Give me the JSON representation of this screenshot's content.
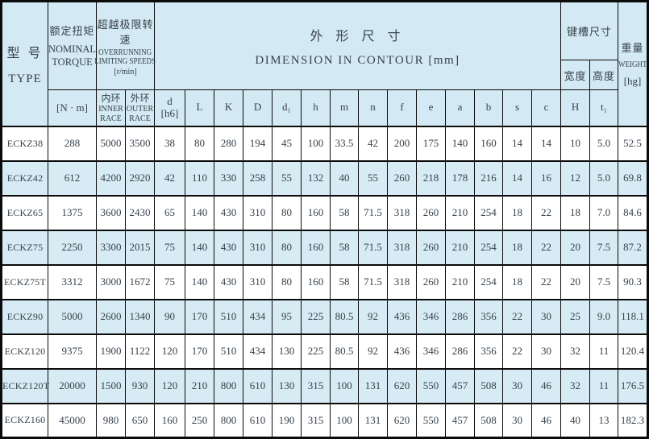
{
  "colors": {
    "header_bg": "#d3e9f3",
    "row_bg": "#ffffff",
    "row_alt_bg": "#d7ebf4",
    "border": "#0b0b0b",
    "text": "#37424c"
  },
  "header": {
    "type_zh": "型 号",
    "type_en": "TYPE",
    "torque_zh": "额定扭矩",
    "torque_en": "NOMINAL\nTORQUE",
    "torque_unit": "[N · m]",
    "overrun_zh": "超越极限转速",
    "overrun_en": "OVERRUNNING\nLIMITING SPEEDS",
    "overrun_unit": "[r/min]",
    "inner_zh": "内环",
    "inner_en": "INNER\nRACE",
    "outer_zh": "外环",
    "outer_en": "OUTER\nRACE",
    "dim_zh": "外 形  尺 寸",
    "dim_en": "DIMENSION  IN CONTOUR  [mm]",
    "keyway_zh": "键槽尺寸",
    "keyway_width_zh": "宽度",
    "keyway_height_zh": "高度",
    "weight_zh": "重量",
    "weight_en": "WEIGHT",
    "weight_unit": "[hg]",
    "dim_cols": [
      "d\n[h6]",
      "L",
      "K",
      "D",
      "d₁",
      "h",
      "m",
      "n",
      "f",
      "e",
      "a",
      "b",
      "s",
      "c"
    ],
    "keyway_cols": [
      "H",
      "t₁"
    ]
  },
  "rows": [
    {
      "type": "ECKZ38",
      "values": [
        "288",
        "5000",
        "3500",
        "38",
        "80",
        "280",
        "194",
        "45",
        "100",
        "33.5",
        "42",
        "200",
        "175",
        "140",
        "160",
        "14",
        "14",
        "10",
        "5.0",
        "52.5"
      ]
    },
    {
      "type": "ECKZ42",
      "values": [
        "612",
        "4200",
        "2920",
        "42",
        "110",
        "330",
        "258",
        "55",
        "132",
        "40",
        "55",
        "260",
        "218",
        "178",
        "216",
        "14",
        "16",
        "12",
        "5.0",
        "69.8"
      ]
    },
    {
      "type": "ECKZ65",
      "values": [
        "1375",
        "3600",
        "2430",
        "65",
        "140",
        "430",
        "310",
        "80",
        "160",
        "58",
        "71.5",
        "318",
        "260",
        "210",
        "254",
        "18",
        "22",
        "18",
        "7.0",
        "84.6"
      ]
    },
    {
      "type": "ECKZ75",
      "values": [
        "2250",
        "3300",
        "2015",
        "75",
        "140",
        "430",
        "310",
        "80",
        "160",
        "58",
        "71.5",
        "318",
        "260",
        "210",
        "254",
        "18",
        "22",
        "20",
        "7.5",
        "87.2"
      ]
    },
    {
      "type": "ECKZ75T",
      "values": [
        "3312",
        "3000",
        "1672",
        "75",
        "140",
        "430",
        "310",
        "80",
        "160",
        "58",
        "71.5",
        "318",
        "260",
        "210",
        "254",
        "18",
        "22",
        "20",
        "7.5",
        "90.3"
      ]
    },
    {
      "type": "ECKZ90",
      "values": [
        "5000",
        "2600",
        "1340",
        "90",
        "170",
        "510",
        "434",
        "95",
        "225",
        "80.5",
        "92",
        "436",
        "346",
        "286",
        "356",
        "22",
        "30",
        "25",
        "9.0",
        "118.1"
      ]
    },
    {
      "type": "ECKZ120",
      "values": [
        "9375",
        "1900",
        "1122",
        "120",
        "170",
        "510",
        "434",
        "130",
        "225",
        "80.5",
        "92",
        "436",
        "346",
        "286",
        "356",
        "22",
        "30",
        "32",
        "11",
        "120.4"
      ]
    },
    {
      "type": "ECKZ120T",
      "values": [
        "20000",
        "1500",
        "930",
        "120",
        "210",
        "800",
        "610",
        "130",
        "315",
        "100",
        "131",
        "620",
        "550",
        "457",
        "508",
        "30",
        "46",
        "32",
        "11",
        "176.5"
      ]
    },
    {
      "type": "ECKZ160",
      "values": [
        "45000",
        "980",
        "650",
        "160",
        "250",
        "800",
        "610",
        "190",
        "315",
        "100",
        "131",
        "620",
        "550",
        "457",
        "508",
        "30",
        "46",
        "40",
        "13",
        "182.3"
      ]
    }
  ]
}
